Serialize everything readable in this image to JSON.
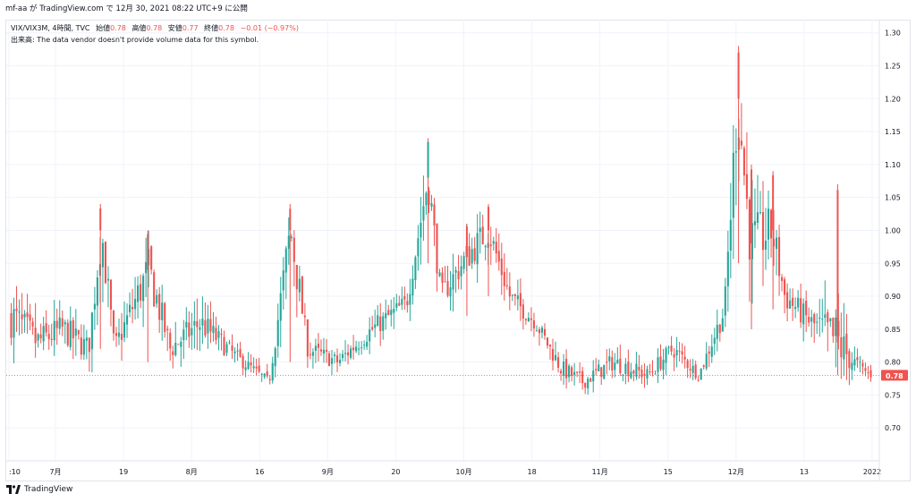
{
  "header": {
    "text": "mf-aa が TradingView.com で 12月 30, 2021 08:22 UTC+9 に公開"
  },
  "legend": {
    "symbol": "VIX/VIX3M, 4時間, TVC",
    "open_label": "始値",
    "open": "0.78",
    "high_label": "高値",
    "high": "0.78",
    "low_label": "安値",
    "low": "0.77",
    "close_label": "終値",
    "close": "0.78",
    "change": "−0.01 (−0.97%)",
    "volume_note": "出来高: The data vendor doesn't provide volume data for this symbol."
  },
  "footer": {
    "brand": "TradingView",
    "logo_icon": "tradingview-logo-icon"
  },
  "colors": {
    "up": "#26a69a",
    "down": "#ef5350",
    "grid": "#f0f3fa",
    "price_tag": "#ef5350"
  },
  "chart_data": {
    "type": "candlestick",
    "title": "VIX/VIX3M",
    "interval": "4時間",
    "ylim": [
      0.65,
      1.32
    ],
    "y_ticks": [
      "1.30",
      "1.25",
      "1.20",
      "1.15",
      "1.10",
      "1.05",
      "1.00",
      "0.95",
      "0.90",
      "0.85",
      "0.80",
      "0.75",
      "0.70"
    ],
    "x_ticks": [
      ":10",
      "7月",
      "19",
      "8月",
      "16",
      "9月",
      "20",
      "10月",
      "18",
      "11月",
      "15",
      "12月",
      "13",
      "2022"
    ],
    "last_price": "0.78",
    "grid": true,
    "ohlc_keypoints": [
      {
        "t": 0.0,
        "c": 0.87,
        "h": 0.99,
        "l": 0.8
      },
      {
        "t": 0.03,
        "c": 0.83,
        "h": 0.89,
        "l": 0.75
      },
      {
        "t": 0.06,
        "c": 0.85,
        "h": 0.9,
        "l": 0.77
      },
      {
        "t": 0.09,
        "c": 0.82,
        "h": 0.87,
        "l": 0.76
      },
      {
        "t": 0.105,
        "c": 1.0,
        "h": 1.04,
        "l": 0.82
      },
      {
        "t": 0.12,
        "c": 0.82,
        "h": 0.86,
        "l": 0.77
      },
      {
        "t": 0.16,
        "c": 0.94,
        "h": 1.0,
        "l": 0.8
      },
      {
        "t": 0.185,
        "c": 0.82,
        "h": 0.88,
        "l": 0.77
      },
      {
        "t": 0.22,
        "c": 0.86,
        "h": 0.91,
        "l": 0.78
      },
      {
        "t": 0.26,
        "c": 0.81,
        "h": 0.85,
        "l": 0.78
      },
      {
        "t": 0.3,
        "c": 0.77,
        "h": 0.8,
        "l": 0.76
      },
      {
        "t": 0.325,
        "c": 1.0,
        "h": 1.04,
        "l": 0.8
      },
      {
        "t": 0.345,
        "c": 0.82,
        "h": 0.86,
        "l": 0.78
      },
      {
        "t": 0.38,
        "c": 0.8,
        "h": 0.85,
        "l": 0.78
      },
      {
        "t": 0.42,
        "c": 0.85,
        "h": 0.88,
        "l": 0.79
      },
      {
        "t": 0.46,
        "c": 0.89,
        "h": 0.92,
        "l": 0.83
      },
      {
        "t": 0.485,
        "c": 1.08,
        "h": 1.14,
        "l": 0.95
      },
      {
        "t": 0.5,
        "c": 0.9,
        "h": 0.95,
        "l": 0.85
      },
      {
        "t": 0.53,
        "c": 0.96,
        "h": 1.01,
        "l": 0.87
      },
      {
        "t": 0.555,
        "c": 1.0,
        "h": 1.04,
        "l": 0.9
      },
      {
        "t": 0.58,
        "c": 0.9,
        "h": 0.95,
        "l": 0.85
      },
      {
        "t": 0.61,
        "c": 0.86,
        "h": 0.9,
        "l": 0.83
      },
      {
        "t": 0.64,
        "c": 0.79,
        "h": 0.84,
        "l": 0.76
      },
      {
        "t": 0.665,
        "c": 0.77,
        "h": 0.81,
        "l": 0.745
      },
      {
        "t": 0.7,
        "c": 0.8,
        "h": 0.85,
        "l": 0.77
      },
      {
        "t": 0.74,
        "c": 0.78,
        "h": 0.83,
        "l": 0.76
      },
      {
        "t": 0.77,
        "c": 0.82,
        "h": 0.86,
        "l": 0.78
      },
      {
        "t": 0.8,
        "c": 0.78,
        "h": 0.82,
        "l": 0.77
      },
      {
        "t": 0.83,
        "c": 0.88,
        "h": 0.91,
        "l": 0.8
      },
      {
        "t": 0.845,
        "c": 1.2,
        "h": 1.28,
        "l": 0.95
      },
      {
        "t": 0.86,
        "c": 0.98,
        "h": 1.1,
        "l": 0.85
      },
      {
        "t": 0.885,
        "c": 1.0,
        "h": 1.09,
        "l": 0.88
      },
      {
        "t": 0.9,
        "c": 0.9,
        "h": 0.95,
        "l": 0.83
      },
      {
        "t": 0.93,
        "c": 0.86,
        "h": 0.9,
        "l": 0.8
      },
      {
        "t": 0.96,
        "c": 0.83,
        "h": 1.07,
        "l": 0.78
      },
      {
        "t": 0.98,
        "c": 0.8,
        "h": 0.84,
        "l": 0.76
      },
      {
        "t": 1.0,
        "c": 0.78,
        "h": 0.8,
        "l": 0.77
      }
    ]
  }
}
